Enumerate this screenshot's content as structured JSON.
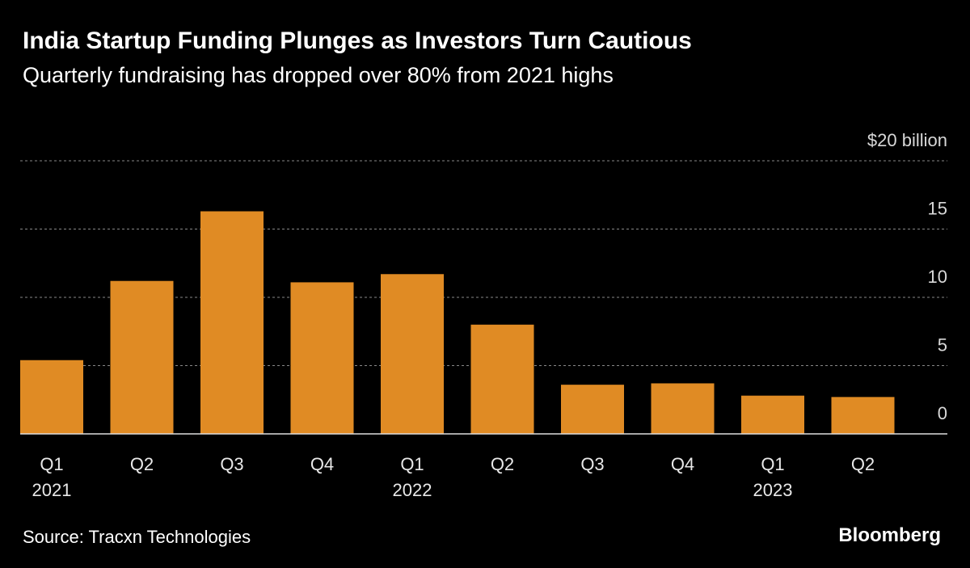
{
  "chart_data": {
    "type": "bar",
    "title": "India Startup Funding Plunges as Investors Turn Cautious",
    "subtitle": "Quarterly fundraising has dropped over 80% from 2021 highs",
    "categories": [
      "Q1",
      "Q2",
      "Q3",
      "Q4",
      "Q1",
      "Q2",
      "Q3",
      "Q4",
      "Q1",
      "Q2"
    ],
    "years": [
      "2021",
      null,
      null,
      null,
      "2022",
      null,
      null,
      null,
      "2023",
      null
    ],
    "values": [
      5.4,
      11.2,
      16.3,
      11.1,
      11.7,
      8.0,
      3.6,
      3.7,
      2.8,
      2.7
    ],
    "color": "#e08b24",
    "ylim": [
      0,
      20
    ],
    "yticks": [
      0,
      5,
      10,
      15,
      {
        "value": 20,
        "label": "$20 billion"
      }
    ],
    "grid": true,
    "source": "Source: Tracxn Technologies",
    "brand": "Bloomberg"
  }
}
